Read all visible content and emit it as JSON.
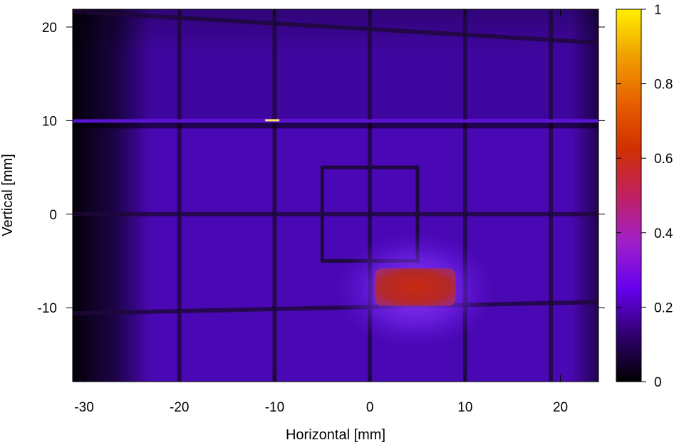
{
  "chart_data": {
    "type": "heatmap",
    "title": "",
    "xlabel": "Horizontal [mm]",
    "ylabel": "Vertical [mm]",
    "xlim": [
      -31.2,
      24
    ],
    "ylim": [
      -17.9,
      21.9
    ],
    "xticks": [
      -30,
      -20,
      -10,
      0,
      10,
      20
    ],
    "xtick_labels": [
      "-30",
      "-20",
      "-10",
      "0",
      "10",
      "20"
    ],
    "yticks": [
      -10,
      0,
      10,
      20
    ],
    "ytick_labels": [
      "-10",
      "0",
      "10",
      "20"
    ],
    "colorbar": {
      "range": [
        0,
        1
      ],
      "ticks": [
        0,
        0.2,
        0.4,
        0.6,
        0.8,
        1
      ],
      "tick_labels": [
        "0",
        "0.2",
        "0.4",
        "0.6",
        "0.8",
        "1"
      ],
      "colormap": [
        "#000000",
        "#30006e",
        "#6600ee",
        "#a020c8",
        "#c02060",
        "#d03000",
        "#e86000",
        "#f0a000",
        "#fff000"
      ]
    },
    "background_level": 0.12,
    "grid_lines_x_mm": [
      -20,
      -10,
      0,
      10,
      19
    ],
    "grid_lines_y_mm": [
      -10,
      0,
      20
    ],
    "hot_spot": {
      "x_range_mm": [
        0.5,
        9
      ],
      "y_range_mm": [
        -9.8,
        -5.8
      ],
      "peak_value": 0.55,
      "halo_value": 0.3
    },
    "square_marker_mm": {
      "x": [
        -5,
        5
      ],
      "y": [
        -5,
        5
      ]
    },
    "bright_line_y_mm": 10
  }
}
